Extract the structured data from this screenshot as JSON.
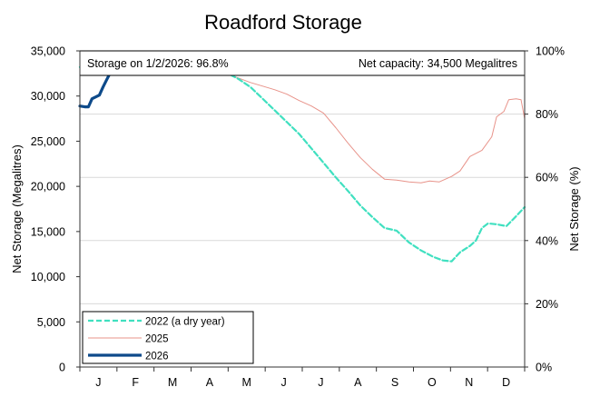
{
  "chart_data": {
    "type": "line",
    "title": "Roadford Storage",
    "ylabel_left": "Net Storage (Megalitres)",
    "ylabel_right": "Net Storage (%)",
    "info_left": "Storage on 1/2/2026:  96.8%",
    "info_right": "Net capacity: 34,500  Megalitres",
    "ylim": [
      0,
      35000
    ],
    "y_right_lim": [
      0,
      100
    ],
    "left_ticks": [
      {
        "value": 0,
        "label": "0"
      },
      {
        "value": 5000,
        "label": "5,000"
      },
      {
        "value": 10000,
        "label": "10,000"
      },
      {
        "value": 15000,
        "label": "15,000"
      },
      {
        "value": 20000,
        "label": "20,000"
      },
      {
        "value": 25000,
        "label": "25,000"
      },
      {
        "value": 30000,
        "label": "30,000"
      },
      {
        "value": 35000,
        "label": "35,000"
      }
    ],
    "right_ticks": [
      {
        "value": 0,
        "label": "0%"
      },
      {
        "value": 20,
        "label": "20%"
      },
      {
        "value": 40,
        "label": "40%"
      },
      {
        "value": 60,
        "label": "60%"
      },
      {
        "value": 80,
        "label": "80%"
      },
      {
        "value": 100,
        "label": "100%"
      }
    ],
    "month_labels": [
      "J",
      "F",
      "M",
      "A",
      "M",
      "J",
      "J",
      "A",
      "S",
      "O",
      "N",
      "D"
    ],
    "grid": "horizontal at right-axis ticks",
    "legend_placement": "bottom-left",
    "series": [
      {
        "name": "2022 (a dry year)",
        "color": "#40e0c0",
        "style": "dashed",
        "points": [
          [
            0,
            33200
          ],
          [
            10,
            33900
          ],
          [
            20,
            34200
          ],
          [
            30,
            34100
          ],
          [
            40,
            34100
          ],
          [
            50,
            34300
          ],
          [
            60,
            34400
          ],
          [
            70,
            34400
          ],
          [
            80,
            34200
          ],
          [
            90,
            33700
          ],
          [
            100,
            33300
          ],
          [
            110,
            33000
          ],
          [
            120,
            32600
          ],
          [
            130,
            31900
          ],
          [
            140,
            31000
          ],
          [
            150,
            29700
          ],
          [
            160,
            28400
          ],
          [
            170,
            27100
          ],
          [
            180,
            25800
          ],
          [
            190,
            24200
          ],
          [
            200,
            22600
          ],
          [
            210,
            21000
          ],
          [
            220,
            19500
          ],
          [
            230,
            17900
          ],
          [
            240,
            16600
          ],
          [
            250,
            15400
          ],
          [
            260,
            15100
          ],
          [
            270,
            13800
          ],
          [
            280,
            12900
          ],
          [
            290,
            12200
          ],
          [
            298,
            11800
          ],
          [
            305,
            11700
          ],
          [
            312,
            12700
          ],
          [
            320,
            13400
          ],
          [
            325,
            14000
          ],
          [
            330,
            15400
          ],
          [
            335,
            15900
          ],
          [
            342,
            15800
          ],
          [
            350,
            15600
          ],
          [
            358,
            16700
          ],
          [
            365,
            17700
          ]
        ]
      },
      {
        "name": "2025",
        "color": "#e8938a",
        "style": "solid",
        "points": [
          [
            0,
            33400
          ],
          [
            10,
            34000
          ],
          [
            20,
            34200
          ],
          [
            30,
            34300
          ],
          [
            40,
            34300
          ],
          [
            50,
            34400
          ],
          [
            60,
            34400
          ],
          [
            70,
            34200
          ],
          [
            80,
            33900
          ],
          [
            90,
            33600
          ],
          [
            100,
            33200
          ],
          [
            110,
            32900
          ],
          [
            120,
            32500
          ],
          [
            130,
            32000
          ],
          [
            140,
            31500
          ],
          [
            150,
            31100
          ],
          [
            160,
            30700
          ],
          [
            170,
            30200
          ],
          [
            180,
            29500
          ],
          [
            190,
            28900
          ],
          [
            200,
            28100
          ],
          [
            210,
            26500
          ],
          [
            220,
            24800
          ],
          [
            230,
            23200
          ],
          [
            240,
            21900
          ],
          [
            250,
            20800
          ],
          [
            260,
            20700
          ],
          [
            270,
            20500
          ],
          [
            280,
            20400
          ],
          [
            287,
            20600
          ],
          [
            295,
            20500
          ],
          [
            305,
            21100
          ],
          [
            312,
            21700
          ],
          [
            320,
            23300
          ],
          [
            330,
            24000
          ],
          [
            338,
            25500
          ],
          [
            342,
            27700
          ],
          [
            348,
            28300
          ],
          [
            352,
            29600
          ],
          [
            358,
            29700
          ],
          [
            362,
            29600
          ],
          [
            365,
            27500
          ]
        ]
      },
      {
        "name": "2026",
        "color": "#0d4a8a",
        "style": "thick",
        "points": [
          [
            0,
            28900
          ],
          [
            4,
            28800
          ],
          [
            7,
            28800
          ],
          [
            10,
            29700
          ],
          [
            13,
            29900
          ],
          [
            16,
            30100
          ],
          [
            19,
            31000
          ],
          [
            22,
            31800
          ],
          [
            25,
            32600
          ],
          [
            28,
            33000
          ],
          [
            32,
            33400
          ]
        ]
      }
    ]
  }
}
